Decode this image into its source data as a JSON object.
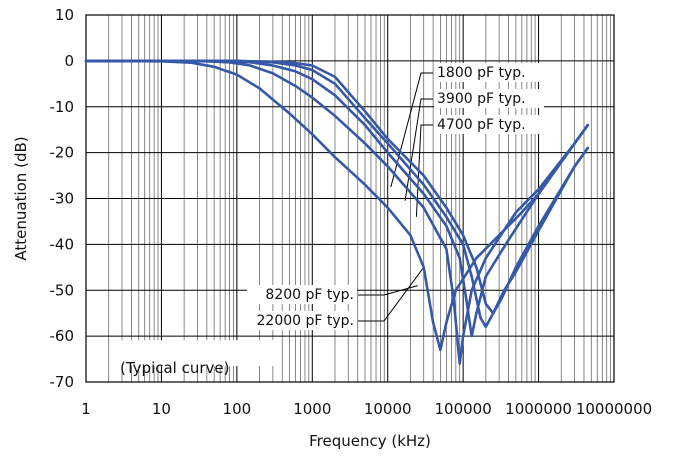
{
  "chart_data": {
    "type": "line",
    "title": "",
    "xlabel": "Frequency (kHz)",
    "ylabel": "Attenuation (dB)",
    "x_scale": "log",
    "xlim": [
      1,
      10000000
    ],
    "ylim": [
      -70,
      10
    ],
    "x_ticks": [
      1,
      10,
      100,
      1000,
      10000,
      100000,
      1000000,
      10000000
    ],
    "x_tick_labels": [
      "1",
      "10",
      "100",
      "1000",
      "10000",
      "100000",
      "1000000",
      "10000000"
    ],
    "y_ticks": [
      10,
      0,
      -10,
      -20,
      -30,
      -40,
      -50,
      -60,
      -70
    ],
    "y_tick_labels": [
      "10",
      "0",
      "-10",
      "-20",
      "-30",
      "-40",
      "-50",
      "-60",
      "-70"
    ],
    "grid": true,
    "line_color": "#3559a6",
    "note": "(Typical curve)",
    "series": [
      {
        "name": "1800 pF  typ.",
        "points": [
          [
            1,
            0
          ],
          [
            100,
            0
          ],
          [
            500,
            -0.3
          ],
          [
            1000,
            -1
          ],
          [
            2000,
            -3.5
          ],
          [
            5000,
            -11
          ],
          [
            10000,
            -17
          ],
          [
            30000,
            -25
          ],
          [
            60000,
            -32
          ],
          [
            100000,
            -38
          ],
          [
            150000,
            -45
          ],
          [
            200000,
            -53
          ],
          [
            250000,
            -55
          ],
          [
            320000,
            -52
          ],
          [
            500000,
            -45
          ],
          [
            1000000,
            -36
          ],
          [
            3000000,
            -23
          ],
          [
            4500000,
            -19
          ]
        ]
      },
      {
        "name": "3900 pF  typ.",
        "points": [
          [
            1,
            0
          ],
          [
            100,
            0
          ],
          [
            300,
            -0.3
          ],
          [
            600,
            -1
          ],
          [
            1000,
            -2
          ],
          [
            2000,
            -5
          ],
          [
            5000,
            -12.5
          ],
          [
            10000,
            -18
          ],
          [
            30000,
            -27
          ],
          [
            60000,
            -34
          ],
          [
            100000,
            -40
          ],
          [
            130000,
            -47
          ],
          [
            170000,
            -56
          ],
          [
            200000,
            -58
          ],
          [
            250000,
            -55
          ],
          [
            350000,
            -50
          ],
          [
            500000,
            -46
          ],
          [
            1000000,
            -37
          ],
          [
            3000000,
            -23
          ],
          [
            4500000,
            -19
          ]
        ]
      },
      {
        "name": "4700 pF  typ.",
        "points": [
          [
            1,
            0
          ],
          [
            50,
            0
          ],
          [
            150,
            -0.3
          ],
          [
            300,
            -1
          ],
          [
            600,
            -2.3
          ],
          [
            1000,
            -4
          ],
          [
            2000,
            -7.5
          ],
          [
            5000,
            -14
          ],
          [
            10000,
            -20
          ],
          [
            30000,
            -29
          ],
          [
            60000,
            -36
          ],
          [
            90000,
            -43
          ],
          [
            110000,
            -52
          ],
          [
            130000,
            -60
          ],
          [
            150000,
            -55
          ],
          [
            200000,
            -47
          ],
          [
            400000,
            -39
          ],
          [
            1000000,
            -29
          ],
          [
            3000000,
            -18
          ],
          [
            4500000,
            -14
          ]
        ]
      },
      {
        "name": "8200 pF  typ.",
        "points": [
          [
            1,
            0
          ],
          [
            30,
            0
          ],
          [
            80,
            -0.3
          ],
          [
            150,
            -1
          ],
          [
            300,
            -2.7
          ],
          [
            600,
            -5.5
          ],
          [
            1000,
            -8
          ],
          [
            2000,
            -12
          ],
          [
            5000,
            -18
          ],
          [
            10000,
            -23
          ],
          [
            30000,
            -32
          ],
          [
            60000,
            -41
          ],
          [
            75000,
            -52
          ],
          [
            90000,
            -66
          ],
          [
            100000,
            -60
          ],
          [
            130000,
            -50
          ],
          [
            200000,
            -43
          ],
          [
            500000,
            -33
          ],
          [
            1000000,
            -28
          ],
          [
            3000000,
            -18
          ],
          [
            4500000,
            -14
          ]
        ]
      },
      {
        "name": "22000 pF  typ.",
        "points": [
          [
            1,
            0
          ],
          [
            10,
            -0.1
          ],
          [
            25,
            -0.4
          ],
          [
            50,
            -1.3
          ],
          [
            100,
            -3
          ],
          [
            200,
            -6
          ],
          [
            500,
            -11.5
          ],
          [
            1000,
            -16
          ],
          [
            2000,
            -21
          ],
          [
            5000,
            -27
          ],
          [
            10000,
            -32
          ],
          [
            20000,
            -38
          ],
          [
            30000,
            -45
          ],
          [
            40000,
            -57
          ],
          [
            50000,
            -63
          ],
          [
            60000,
            -57
          ],
          [
            80000,
            -50
          ],
          [
            150000,
            -43
          ],
          [
            300000,
            -38
          ],
          [
            600000,
            -33
          ],
          [
            1000000,
            -29
          ],
          [
            3000000,
            -18
          ],
          [
            4500000,
            -14
          ]
        ]
      }
    ],
    "annotations": [
      {
        "series": 0,
        "text": "1800 pF  typ.",
        "at": [
          11000,
          -27.5
        ],
        "label_anchor": "end"
      },
      {
        "series": 1,
        "text": "3900 pF  typ.",
        "at": [
          17000,
          -30.5
        ],
        "label_anchor": "end"
      },
      {
        "series": 2,
        "text": "4700 pF  typ.",
        "at": [
          24000,
          -34
        ],
        "label_anchor": "end"
      },
      {
        "series": 3,
        "text": "8200 pF  typ.",
        "at": [
          25000,
          -49
        ],
        "label_anchor": "start"
      },
      {
        "series": 4,
        "text": "22000 pF  typ.",
        "at": [
          30000,
          -45
        ],
        "label_anchor": "start"
      }
    ]
  }
}
